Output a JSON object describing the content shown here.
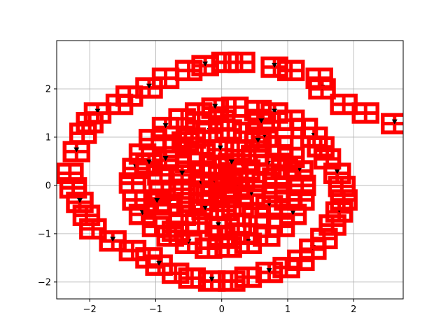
{
  "chart_data": {
    "type": "scatter",
    "title": "",
    "xlabel": "",
    "ylabel": "",
    "xlim": [
      -2.5,
      2.75
    ],
    "ylim": [
      -2.35,
      3.0
    ],
    "grid": true,
    "xticks": [
      -2,
      -1,
      0,
      1,
      2
    ],
    "yticks": [
      -2,
      -1,
      0,
      1,
      2
    ],
    "xtick_labels": [
      "−2",
      "−1",
      "0",
      "1",
      "2"
    ],
    "ytick_labels": [
      "−2",
      "−1",
      "0",
      "1",
      "2"
    ],
    "series": [
      {
        "marker": "square-grid",
        "color": "#ff0000",
        "arrow_color": "#000000",
        "points": [
          [
            2.62,
            1.28
          ],
          [
            2.18,
            1.5
          ],
          [
            1.85,
            1.68
          ],
          [
            1.52,
            2.0
          ],
          [
            1.48,
            2.22
          ],
          [
            1.05,
            2.38
          ],
          [
            0.8,
            2.45
          ],
          [
            0.3,
            2.55
          ],
          [
            0.05,
            2.55
          ],
          [
            -0.25,
            2.48
          ],
          [
            -0.5,
            2.38
          ],
          [
            -0.85,
            2.22
          ],
          [
            -1.1,
            2.02
          ],
          [
            -1.4,
            1.85
          ],
          [
            -1.55,
            1.68
          ],
          [
            -1.88,
            1.5
          ],
          [
            -2.0,
            1.3
          ],
          [
            -2.1,
            1.08
          ],
          [
            -2.2,
            0.7
          ],
          [
            -2.3,
            0.25
          ],
          [
            -2.25,
            -0.05
          ],
          [
            -2.15,
            -0.35
          ],
          [
            -2.05,
            -0.62
          ],
          [
            -1.95,
            -0.9
          ],
          [
            -1.65,
            -1.15
          ],
          [
            -1.35,
            -1.35
          ],
          [
            -1.1,
            -1.5
          ],
          [
            -0.95,
            -1.65
          ],
          [
            -0.7,
            -1.82
          ],
          [
            -0.45,
            -1.92
          ],
          [
            -0.15,
            -1.98
          ],
          [
            0.15,
            -1.98
          ],
          [
            0.4,
            -1.9
          ],
          [
            0.72,
            -1.8
          ],
          [
            0.98,
            -1.7
          ],
          [
            1.2,
            -1.55
          ],
          [
            1.38,
            -1.32
          ],
          [
            1.55,
            -1.1
          ],
          [
            1.68,
            -0.82
          ],
          [
            1.78,
            -0.55
          ],
          [
            1.85,
            -0.3
          ],
          [
            1.82,
            -0.02
          ],
          [
            1.75,
            0.25
          ],
          [
            1.6,
            0.55
          ],
          [
            1.5,
            0.8
          ],
          [
            1.4,
            1.0
          ],
          [
            1.25,
            1.18
          ],
          [
            1.05,
            1.35
          ],
          [
            0.8,
            1.5
          ],
          [
            0.55,
            1.55
          ],
          [
            0.2,
            1.62
          ],
          [
            -0.1,
            1.6
          ],
          [
            -0.35,
            1.5
          ],
          [
            -0.6,
            1.38
          ],
          [
            -0.85,
            1.2
          ],
          [
            -1.05,
            0.95
          ],
          [
            -1.2,
            0.65
          ],
          [
            -1.3,
            0.35
          ],
          [
            -1.35,
            0.05
          ],
          [
            -1.3,
            -0.3
          ],
          [
            -1.2,
            -0.6
          ],
          [
            -1.0,
            -0.85
          ],
          [
            -0.78,
            -1.05
          ],
          [
            -0.5,
            -1.2
          ],
          [
            -0.2,
            -1.3
          ],
          [
            0.1,
            -1.28
          ],
          [
            0.4,
            -1.2
          ],
          [
            0.68,
            -1.05
          ],
          [
            0.9,
            -0.85
          ],
          [
            1.08,
            -0.6
          ],
          [
            1.2,
            -0.3
          ],
          [
            1.22,
            0.0
          ],
          [
            1.18,
            0.3
          ],
          [
            1.05,
            0.58
          ],
          [
            0.88,
            0.82
          ],
          [
            0.65,
            1.0
          ],
          [
            0.38,
            1.1
          ],
          [
            0.1,
            1.15
          ],
          [
            -0.18,
            1.1
          ],
          [
            -0.45,
            0.98
          ],
          [
            -0.68,
            0.78
          ],
          [
            -0.85,
            0.52
          ],
          [
            -0.92,
            0.22
          ],
          [
            -0.9,
            -0.1
          ],
          [
            -0.8,
            -0.4
          ],
          [
            -0.6,
            -0.62
          ],
          [
            -0.35,
            -0.78
          ],
          [
            -0.05,
            -0.85
          ],
          [
            0.25,
            -0.8
          ],
          [
            0.52,
            -0.65
          ],
          [
            0.72,
            -0.42
          ],
          [
            0.82,
            -0.15
          ],
          [
            0.82,
            0.15
          ],
          [
            0.7,
            0.42
          ],
          [
            0.5,
            0.62
          ],
          [
            0.25,
            0.72
          ],
          [
            -0.02,
            0.74
          ],
          [
            -0.3,
            0.66
          ],
          [
            -0.5,
            0.48
          ],
          [
            -0.6,
            0.22
          ],
          [
            -0.6,
            -0.08
          ],
          [
            -0.48,
            -0.35
          ],
          [
            -0.25,
            -0.5
          ],
          [
            0.02,
            -0.52
          ],
          [
            0.28,
            -0.42
          ],
          [
            0.45,
            -0.2
          ],
          [
            0.48,
            0.08
          ],
          [
            0.38,
            0.32
          ],
          [
            0.15,
            0.45
          ],
          [
            -0.1,
            0.42
          ],
          [
            -0.28,
            0.25
          ],
          [
            -0.3,
            0.0
          ],
          [
            -0.18,
            -0.2
          ],
          [
            0.05,
            -0.25
          ],
          [
            0.22,
            -0.08
          ],
          [
            0.2,
            0.15
          ],
          [
            0.0,
            0.2
          ],
          [
            -0.1,
            0.05
          ],
          [
            0.02,
            -0.05
          ],
          [
            0.1,
            0.05
          ],
          [
            0.55,
            0.9
          ],
          [
            -0.55,
            0.9
          ],
          [
            0.95,
            0.35
          ],
          [
            -0.98,
            -0.35
          ],
          [
            0.35,
            -1.0
          ],
          [
            -0.35,
            1.3
          ],
          [
            0.6,
            1.3
          ],
          [
            -0.7,
            -0.95
          ],
          [
            1.0,
            -0.3
          ],
          [
            -1.1,
            0.45
          ],
          [
            0.0,
            1.35
          ],
          [
            0.0,
            -1.05
          ]
        ]
      }
    ]
  }
}
